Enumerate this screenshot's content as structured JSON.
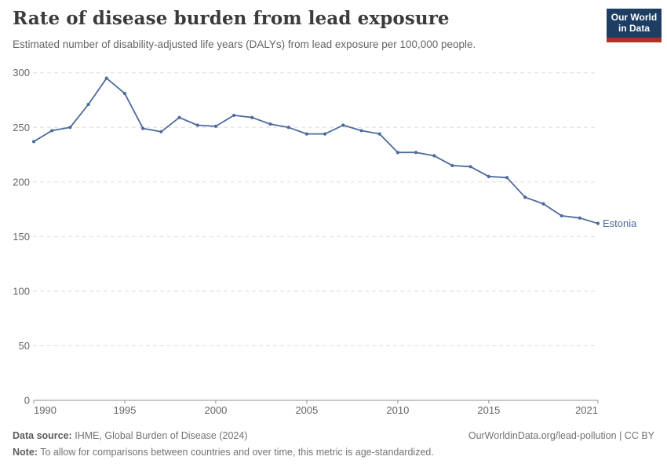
{
  "logo": {
    "line1": "Our World",
    "line2": "in Data"
  },
  "chart_data": {
    "type": "line",
    "title": "Rate of disease burden from lead exposure",
    "subtitle": "Estimated number of disability-adjusted life years (DALYs) from lead exposure per 100,000 people.",
    "x": [
      1990,
      1991,
      1992,
      1993,
      1994,
      1995,
      1996,
      1997,
      1998,
      1999,
      2000,
      2001,
      2002,
      2003,
      2004,
      2005,
      2006,
      2007,
      2008,
      2009,
      2010,
      2011,
      2012,
      2013,
      2014,
      2015,
      2016,
      2017,
      2018,
      2019,
      2020,
      2021
    ],
    "series": [
      {
        "name": "Estonia",
        "color": "#4c6a9c",
        "values": [
          237,
          247,
          250,
          271,
          295,
          281,
          249,
          246,
          259,
          252,
          251,
          261,
          259,
          253,
          250,
          244,
          244,
          252,
          247,
          244,
          227,
          227,
          224,
          215,
          214,
          205,
          204,
          186,
          180,
          169,
          167,
          162
        ]
      }
    ],
    "xlim": [
      1990,
      2021
    ],
    "ylim": [
      0,
      300
    ],
    "x_ticks": [
      1990,
      1995,
      2000,
      2005,
      2010,
      2015,
      2021
    ],
    "y_ticks": [
      0,
      50,
      100,
      150,
      200,
      250,
      300
    ],
    "xlabel": "",
    "ylabel": "",
    "grid": "horizontal-dashed",
    "legend": "end-of-line-label"
  },
  "footer": {
    "source_label": "Data source:",
    "source_text": "IHME, Global Burden of Disease (2024)",
    "attribution": "OurWorldinData.org/lead-pollution | CC BY",
    "note_label": "Note:",
    "note_text": "To allow for comparisons between countries and over time, this metric is age-standardized."
  },
  "colors": {
    "line": "#4c6a9c",
    "grid": "#dddddd",
    "axis": "#8f8f8f",
    "tick_text": "#666666",
    "logo_navy": "#1d3d63",
    "logo_red": "#b03123"
  }
}
